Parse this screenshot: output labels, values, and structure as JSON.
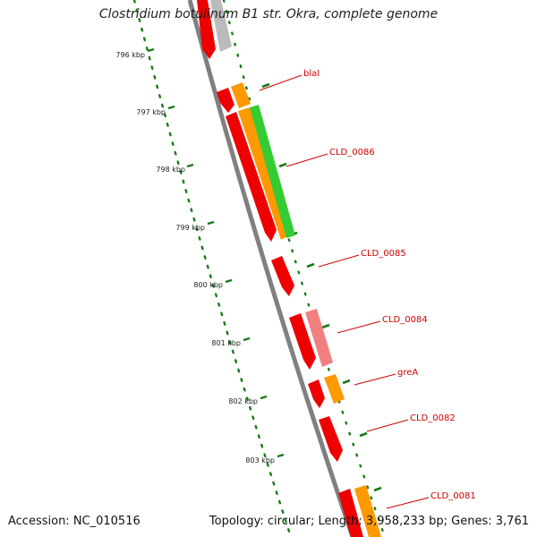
{
  "title": "Clostridium botulinum B1 str. Okra, complete genome",
  "footer": {
    "accession": "Accession: NC_010516",
    "summary": "Topology: circular; Length: 3,958,233 bp; Genes: 3,761"
  },
  "ruler": {
    "unit": "kbp",
    "labels": [
      "796 kbp",
      "797 kbp",
      "798 kbp",
      "799 kbp",
      "800 kbp",
      "801 kbp",
      "802 kbp",
      "803 kbp"
    ]
  },
  "gene_labels": [
    "blaI",
    "CLD_0086",
    "CLD_0085",
    "CLD_0084",
    "greA",
    "CLD_0082",
    "CLD_0081"
  ],
  "colors": {
    "cds": "#ff0000",
    "cds_alt": "#ee0000",
    "gene": "#ff9900",
    "rna": "#33cc33",
    "pseudo_pink": "#f08080",
    "gray_feature": "#bbbbbb",
    "backbone": "#808080",
    "ruler_tick": "#1a7a1a",
    "label_text": "#cc0000"
  }
}
